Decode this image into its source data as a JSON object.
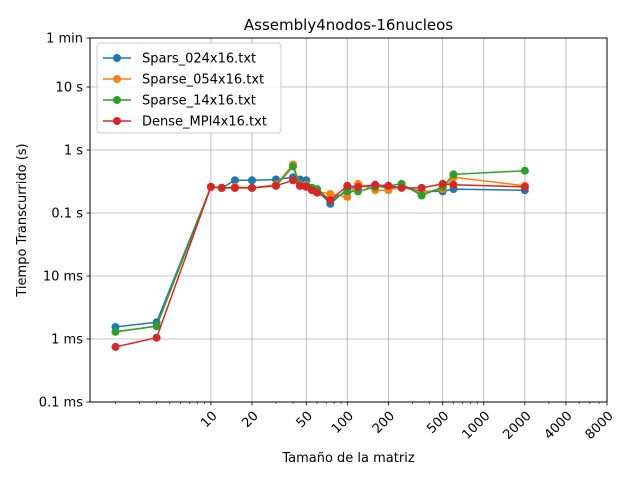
{
  "chart_data": {
    "type": "line",
    "title": "Assembly4nodos-16nucleos",
    "xlabel": "Tamaño de la matriz",
    "ylabel": "Tiempo Transcurrido (s)",
    "x_scale": "log",
    "y_scale": "log",
    "xlim": [
      1.3,
      8000
    ],
    "ylim": [
      0.0001,
      60
    ],
    "x_ticks": [
      10,
      20,
      50,
      100,
      200,
      500,
      1000,
      2000,
      4000,
      8000
    ],
    "x_tick_labels": [
      "10",
      "20",
      "50",
      "100",
      "200",
      "500",
      "1000",
      "2000",
      "4000",
      "8000"
    ],
    "y_ticks": [
      0.0001,
      0.001,
      0.01,
      0.1,
      1,
      10,
      60
    ],
    "y_tick_labels": [
      "0.1 ms",
      "1 ms",
      "10 ms",
      "0.1 s",
      "1 s",
      "10 s",
      "1 min"
    ],
    "grid": true,
    "legend_position": "top-left",
    "series": [
      {
        "name": "Spars_024x16.txt",
        "color": "#1f77b4",
        "x": [
          2,
          4,
          10,
          12,
          15,
          20,
          30,
          40,
          45,
          50,
          55,
          60,
          75,
          100,
          120,
          160,
          200,
          250,
          350,
          500,
          600,
          2000
        ],
        "y": [
          0.00155,
          0.00185,
          0.26,
          0.25,
          0.33,
          0.33,
          0.34,
          0.37,
          0.34,
          0.33,
          0.25,
          0.23,
          0.14,
          0.24,
          0.26,
          0.27,
          0.25,
          0.26,
          0.22,
          0.22,
          0.24,
          0.23
        ]
      },
      {
        "name": "Sparse_054x16.txt",
        "color": "#ff7f0e",
        "x": [
          2,
          4,
          10,
          12,
          15,
          20,
          30,
          40,
          45,
          50,
          55,
          60,
          75,
          100,
          120,
          160,
          200,
          250,
          350,
          500,
          600,
          2000
        ],
        "y": [
          0.0013,
          0.0016,
          0.26,
          0.25,
          0.26,
          0.25,
          0.28,
          0.59,
          0.28,
          0.28,
          0.24,
          0.22,
          0.2,
          0.18,
          0.29,
          0.23,
          0.23,
          0.26,
          0.21,
          0.24,
          0.37,
          0.27
        ]
      },
      {
        "name": "Sparse_14x16.txt",
        "color": "#2ca02c",
        "x": [
          2,
          4,
          10,
          12,
          15,
          20,
          30,
          40,
          45,
          50,
          55,
          60,
          75,
          100,
          120,
          160,
          200,
          250,
          350,
          500,
          600,
          2000
        ],
        "y": [
          0.0013,
          0.0016,
          0.26,
          0.25,
          0.25,
          0.25,
          0.27,
          0.55,
          0.27,
          0.27,
          0.25,
          0.24,
          0.16,
          0.22,
          0.22,
          0.26,
          0.27,
          0.29,
          0.19,
          0.26,
          0.41,
          0.47
        ]
      },
      {
        "name": "Dense_MPI4x16.txt",
        "color": "#d62728",
        "x": [
          2,
          4,
          10,
          12,
          15,
          20,
          30,
          40,
          45,
          50,
          55,
          60,
          75,
          100,
          120,
          160,
          200,
          250,
          350,
          500,
          600,
          2000
        ],
        "y": [
          0.00075,
          0.00105,
          0.26,
          0.25,
          0.25,
          0.25,
          0.27,
          0.33,
          0.27,
          0.26,
          0.23,
          0.21,
          0.16,
          0.27,
          0.26,
          0.28,
          0.27,
          0.25,
          0.25,
          0.29,
          0.28,
          0.26
        ]
      }
    ]
  }
}
